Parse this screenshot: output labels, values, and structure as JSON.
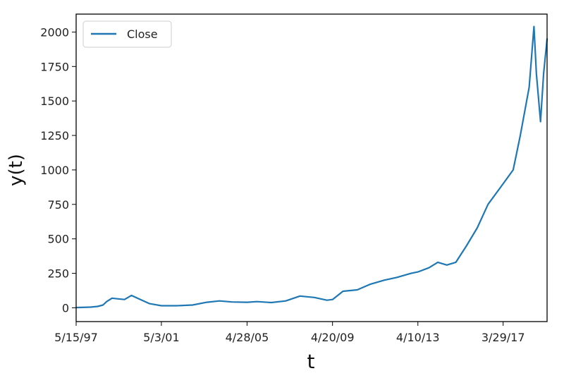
{
  "chart_data": {
    "type": "line",
    "title": "",
    "xlabel": "t",
    "ylabel": "y(t)",
    "x_ticks": [
      "5/15/97",
      "5/3/01",
      "4/28/05",
      "4/20/09",
      "4/10/13",
      "3/29/17"
    ],
    "y_ticks": [
      0,
      250,
      500,
      750,
      1000,
      1250,
      1500,
      1750,
      2000
    ],
    "ylim": [
      -100,
      2130
    ],
    "legend": {
      "position": "top-left",
      "entries": [
        "Close"
      ]
    },
    "grid": false,
    "colors": {
      "series": "#1f77b4",
      "axes": "#000000"
    },
    "series": [
      {
        "name": "Close",
        "x": [
          "5/15/97",
          "1/15/98",
          "5/15/98",
          "8/15/98",
          "10/15/98",
          "1/15/99",
          "4/15/99",
          "8/15/99",
          "12/10/99",
          "4/15/00",
          "10/15/00",
          "5/3/01",
          "1/15/02",
          "10/15/02",
          "6/15/03",
          "1/15/04",
          "8/15/04",
          "4/28/05",
          "10/15/05",
          "6/15/06",
          "2/15/07",
          "10/15/07",
          "6/15/08",
          "1/15/09",
          "4/20/09",
          "10/15/09",
          "6/15/10",
          "1/15/11",
          "9/15/11",
          "4/15/12",
          "12/15/12",
          "4/10/13",
          "10/15/13",
          "3/15/14",
          "8/15/14",
          "1/15/15",
          "7/15/15",
          "1/15/16",
          "7/15/16",
          "3/29/17",
          "9/15/17",
          "1/15/18",
          "6/15/18",
          "9/4/18",
          "10/15/18",
          "12/24/18",
          "2/15/19",
          "4/15/19"
        ],
        "values": [
          2,
          5,
          10,
          20,
          45,
          70,
          65,
          60,
          90,
          65,
          30,
          15,
          15,
          20,
          40,
          50,
          42,
          40,
          45,
          38,
          50,
          85,
          75,
          55,
          60,
          120,
          130,
          170,
          200,
          220,
          250,
          260,
          290,
          330,
          310,
          330,
          450,
          580,
          750,
          900,
          1000,
          1250,
          1600,
          2040,
          1700,
          1350,
          1700,
          1950
        ]
      }
    ]
  }
}
